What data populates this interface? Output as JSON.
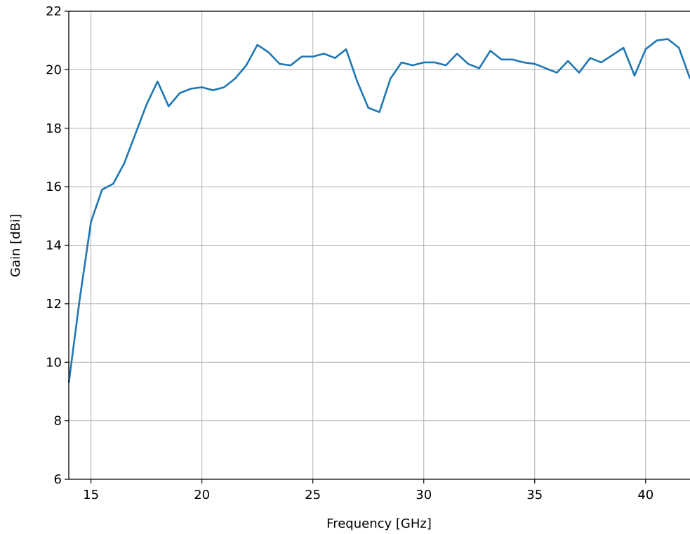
{
  "chart_data": {
    "type": "line",
    "title": "",
    "xlabel": "Frequency [GHz]",
    "ylabel": "Gain [dBi]",
    "xlim": [
      14,
      42
    ],
    "ylim": [
      6,
      22
    ],
    "x_ticks": [
      15,
      20,
      25,
      30,
      35,
      40
    ],
    "y_ticks": [
      6,
      8,
      10,
      12,
      14,
      16,
      18,
      20,
      22
    ],
    "grid": true,
    "legend": "none",
    "series": [
      {
        "color": "#1f77b4",
        "x": [
          14,
          14.5,
          15,
          15.5,
          16,
          16.5,
          17,
          17.5,
          18,
          18.5,
          19,
          19.5,
          20,
          20.5,
          21,
          21.5,
          22,
          22.5,
          23,
          23.5,
          24,
          24.5,
          25,
          25.5,
          26,
          26.5,
          27,
          27.5,
          28,
          28.5,
          29,
          29.5,
          30,
          30.5,
          31,
          31.5,
          32,
          32.5,
          33,
          33.5,
          34,
          34.5,
          35,
          35.5,
          36,
          36.5,
          37,
          37.5,
          38,
          38.5,
          39,
          39.5,
          40,
          40.5,
          41,
          41.5,
          42
        ],
        "y": [
          9.3,
          12.2,
          14.8,
          15.9,
          16.1,
          16.8,
          17.8,
          18.8,
          19.6,
          18.75,
          19.2,
          19.35,
          19.4,
          19.3,
          19.4,
          19.7,
          20.15,
          20.85,
          20.6,
          20.2,
          20.15,
          20.45,
          20.45,
          20.55,
          20.4,
          20.7,
          19.6,
          18.7,
          18.55,
          19.7,
          20.25,
          20.15,
          20.25,
          20.25,
          20.15,
          20.55,
          20.2,
          20.05,
          20.65,
          20.35,
          20.35,
          20.25,
          20.2,
          20.05,
          19.9,
          20.3,
          19.9,
          20.4,
          20.25,
          20.5,
          20.75,
          19.8,
          20.7,
          21.0,
          21.05,
          20.75,
          19.7
        ]
      }
    ]
  }
}
